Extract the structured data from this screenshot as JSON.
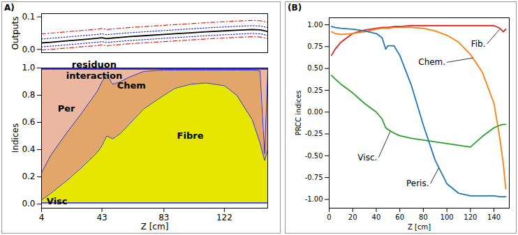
{
  "chart_data": [
    {
      "type": "line",
      "panel": "A)",
      "y_label": "Outputs",
      "tick_labels": "y",
      "x": [
        4,
        10,
        20,
        30,
        40,
        43,
        46,
        50,
        55,
        60,
        70,
        83,
        90,
        100,
        110,
        122,
        130,
        140,
        145,
        148,
        150
      ],
      "xlim": [
        4,
        150
      ],
      "ylim": [
        -0.01,
        0.11
      ],
      "yticks": [
        {
          "value": 0,
          "label": "0.0"
        },
        {
          "value": 0.1,
          "label": "0.1"
        }
      ],
      "series": [
        {
          "color": "#dd2222",
          "line_style": "dashdot",
          "values": [
            0.048,
            0.05,
            0.054,
            0.058,
            0.062,
            0.064,
            0.061,
            0.063,
            0.065,
            0.067,
            0.07,
            0.074,
            0.076,
            0.079,
            0.082,
            0.085,
            0.087,
            0.089,
            0.088,
            0.085,
            0.083
          ]
        },
        {
          "color": "#2222cc",
          "line_style": "dotted",
          "values": [
            0.032,
            0.034,
            0.038,
            0.042,
            0.046,
            0.048,
            0.045,
            0.047,
            0.049,
            0.051,
            0.054,
            0.058,
            0.06,
            0.063,
            0.066,
            0.069,
            0.071,
            0.073,
            0.072,
            0.069,
            0.067
          ]
        },
        {
          "color": "#000000",
          "line_style": "solid",
          "values": [
            0.02,
            0.022,
            0.026,
            0.03,
            0.034,
            0.036,
            0.033,
            0.035,
            0.037,
            0.039,
            0.042,
            0.046,
            0.048,
            0.051,
            0.054,
            0.057,
            0.059,
            0.061,
            0.06,
            0.057,
            0.055
          ]
        },
        {
          "color": "#2222cc",
          "line_style": "dotted",
          "values": [
            0.008,
            0.01,
            0.014,
            0.018,
            0.022,
            0.024,
            0.021,
            0.023,
            0.025,
            0.027,
            0.03,
            0.034,
            0.036,
            0.039,
            0.042,
            0.045,
            0.047,
            0.049,
            0.048,
            0.045,
            0.043
          ]
        },
        {
          "color": "#dd2222",
          "line_style": "dashdot",
          "values": [
            -0.002,
            0.0,
            0.004,
            0.008,
            0.012,
            0.014,
            0.011,
            0.013,
            0.015,
            0.017,
            0.02,
            0.024,
            0.026,
            0.029,
            0.032,
            0.035,
            0.037,
            0.039,
            0.038,
            0.035,
            0.033
          ]
        }
      ]
    },
    {
      "type": "area",
      "stacked": true,
      "x_label": "Z [cm]",
      "y_label": "Indices",
      "x": [
        4,
        10,
        20,
        30,
        40,
        43,
        46,
        50,
        55,
        60,
        70,
        83,
        90,
        100,
        110,
        122,
        130,
        140,
        145,
        148,
        150
      ],
      "xlim": [
        4,
        150
      ],
      "xticks": [
        4,
        43,
        83,
        122
      ],
      "ylim": [
        -0.03,
        1.0
      ],
      "yticks": [
        {
          "value": 0,
          "label": "0.0"
        },
        {
          "value": 0.2,
          "label": "0.2"
        },
        {
          "value": 0.4,
          "label": "0.4"
        },
        {
          "value": 0.6,
          "label": "0.6"
        },
        {
          "value": 0.8,
          "label": "0.8"
        },
        {
          "value": 1.0,
          "label": "1.0"
        }
      ],
      "series": [
        {
          "color": "#8c8c8c",
          "values": [
            0.01,
            0.01,
            0.01,
            0.01,
            0.01,
            0.01,
            0.01,
            0.01,
            0.01,
            0.01,
            0.01,
            0.01,
            0.01,
            0.01,
            0.01,
            0.01,
            0.01,
            0.01,
            0.01,
            0.01,
            0.01
          ]
        },
        {
          "color": "#e6e600",
          "values": [
            0.02,
            0.07,
            0.16,
            0.26,
            0.37,
            0.42,
            0.49,
            0.47,
            0.51,
            0.57,
            0.69,
            0.79,
            0.84,
            0.87,
            0.88,
            0.86,
            0.79,
            0.61,
            0.44,
            0.31,
            0.39
          ]
        },
        {
          "color": "#e3a66a",
          "values": [
            0.2,
            0.28,
            0.35,
            0.4,
            0.45,
            0.47,
            0.45,
            0.4,
            0.38,
            0.35,
            0.275,
            0.185,
            0.135,
            0.105,
            0.095,
            0.115,
            0.185,
            0.365,
            0.53,
            0.05,
            0.57
          ]
        },
        {
          "color": "#ecb7a1",
          "values": [
            0.76,
            0.63,
            0.47,
            0.32,
            0.16,
            0.09,
            0.04,
            0.11,
            0.09,
            0.06,
            0.015,
            0.005,
            0.005,
            0.005,
            0.005,
            0.005,
            0.005,
            0.005,
            0.01,
            0.62,
            0.02
          ]
        },
        {
          "color": "#d98aa0",
          "values": [
            0.005,
            0.005,
            0.005,
            0.005,
            0.005,
            0.005,
            0.005,
            0.005,
            0.005,
            0.005,
            0.005,
            0.005,
            0.005,
            0.005,
            0.005,
            0.005,
            0.005,
            0.005,
            0.005,
            0.005,
            0.005
          ]
        },
        {
          "color": "#000000",
          "values": [
            0.005,
            0.005,
            0.005,
            0.005,
            0.005,
            0.005,
            0.005,
            0.005,
            0.005,
            0.005,
            0.005,
            0.005,
            0.005,
            0.005,
            0.005,
            0.005,
            0.005,
            0.005,
            0.005,
            0.005,
            0.005
          ]
        }
      ],
      "annotations": [
        {
          "text": "Per",
          "x": 20,
          "y": 0.7
        },
        {
          "text": "Chem",
          "x": 62,
          "y": 0.87
        },
        {
          "text": "Fibre",
          "x": 100,
          "y": 0.5
        },
        {
          "text": "Visc",
          "x": 14,
          "y": 0.0
        },
        {
          "text": "interaction",
          "x": 38,
          "y": 0.94
        },
        {
          "text": "residuon",
          "x": 38,
          "y": 1.0
        }
      ]
    },
    {
      "type": "line",
      "panel": "(B)",
      "x_label": "Z [cm]",
      "y_label": "PRCC indices",
      "x": [
        2,
        5,
        10,
        20,
        30,
        40,
        45,
        48,
        50,
        55,
        60,
        70,
        80,
        90,
        100,
        110,
        120,
        130,
        140,
        145,
        148,
        150
      ],
      "xlim": [
        0,
        153
      ],
      "xticks": [
        0,
        20,
        40,
        60,
        80,
        100,
        120,
        140
      ],
      "ylim": [
        -1.1,
        1.08
      ],
      "yticks": [
        {
          "value": -1,
          "label": "-1.00"
        },
        {
          "value": -0.75,
          "label": "-0.75"
        },
        {
          "value": -0.5,
          "label": "-0.50"
        },
        {
          "value": -0.25,
          "label": "-0.25"
        },
        {
          "value": 0,
          "label": "0.00"
        },
        {
          "value": 0.25,
          "label": "0.25"
        },
        {
          "value": 0.5,
          "label": "0.50"
        },
        {
          "value": 0.75,
          "label": "0.75"
        },
        {
          "value": 1,
          "label": "1.00"
        }
      ],
      "series": [
        {
          "color": "#d62728",
          "line_style": "solid",
          "values": [
            0.65,
            0.72,
            0.8,
            0.9,
            0.94,
            0.96,
            0.97,
            0.97,
            0.97,
            0.98,
            0.98,
            0.99,
            0.99,
            0.99,
            0.99,
            0.99,
            0.99,
            0.99,
            0.99,
            0.96,
            0.92,
            0.95
          ]
        },
        {
          "color": "#ff7f0e",
          "line_style": "solid",
          "values": [
            0.92,
            0.9,
            0.89,
            0.9,
            0.92,
            0.95,
            0.96,
            0.96,
            0.96,
            0.97,
            0.97,
            0.97,
            0.96,
            0.93,
            0.88,
            0.8,
            0.66,
            0.46,
            0.1,
            -0.3,
            -0.6,
            -0.88
          ]
        },
        {
          "color": "#2ca02c",
          "line_style": "solid",
          "values": [
            0.42,
            0.38,
            0.32,
            0.22,
            0.1,
            0.0,
            -0.08,
            -0.18,
            -0.2,
            -0.24,
            -0.27,
            -0.3,
            -0.32,
            -0.34,
            -0.36,
            -0.38,
            -0.4,
            -0.28,
            -0.18,
            -0.15,
            -0.14,
            -0.14
          ]
        },
        {
          "color": "#1f77b4",
          "line_style": "solid",
          "values": [
            0.98,
            0.97,
            0.96,
            0.95,
            0.93,
            0.9,
            0.85,
            0.72,
            0.76,
            0.76,
            0.65,
            0.3,
            -0.15,
            -0.55,
            -0.82,
            -0.93,
            -0.96,
            -0.96,
            -0.96,
            -0.97,
            -0.97,
            -0.97
          ]
        }
      ],
      "annotations": [
        {
          "text": "Fib.",
          "x": 134,
          "y": 0.78,
          "arrow_x": 145,
          "arrow_y": 0.95
        },
        {
          "text": "Chem.",
          "x": 100,
          "y": 0.57,
          "arrow_x": 122,
          "arrow_y": 0.62
        },
        {
          "text": "Visc.",
          "x": 42,
          "y": -0.52,
          "arrow_x": 52,
          "arrow_y": -0.22
        },
        {
          "text": "Peris.",
          "x": 86,
          "y": -0.82,
          "arrow_x": 93,
          "arrow_y": -0.64
        }
      ]
    }
  ]
}
